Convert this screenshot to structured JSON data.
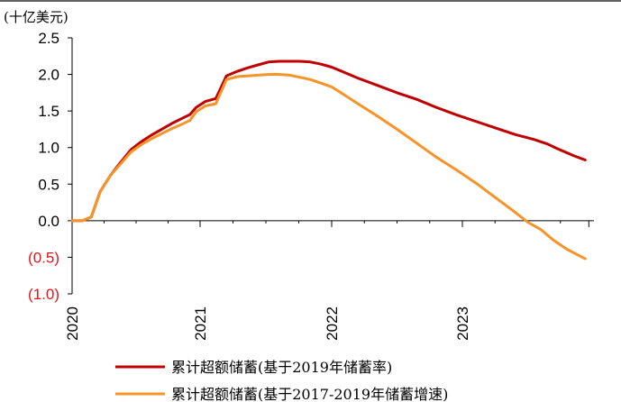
{
  "chart_data": {
    "type": "line",
    "unit_label": "(十亿美元)",
    "ylim": [
      -1.0,
      2.5
    ],
    "y_ticks": [
      {
        "value": 2.5,
        "label": "2.5",
        "negative": false
      },
      {
        "value": 2.0,
        "label": "2.0",
        "negative": false
      },
      {
        "value": 1.5,
        "label": "1.5",
        "negative": false
      },
      {
        "value": 1.0,
        "label": "1.0",
        "negative": false
      },
      {
        "value": 0.5,
        "label": "0.5",
        "negative": false
      },
      {
        "value": 0.0,
        "label": "0.0",
        "negative": false
      },
      {
        "value": -0.5,
        "label": "(0.5)",
        "negative": true
      },
      {
        "value": -1.0,
        "label": "(1.0)",
        "negative": true
      }
    ],
    "x_range": [
      2020.0,
      2023.85
    ],
    "x_ticks": [
      {
        "value": 2020,
        "label": "2020"
      },
      {
        "value": 2021,
        "label": "2021"
      },
      {
        "value": 2022,
        "label": "2022"
      },
      {
        "value": 2023,
        "label": "2023"
      }
    ],
    "grid": false,
    "legend_position": "bottom",
    "colors": {
      "negative_label": "#e8141e",
      "axis": "#000000"
    },
    "series": [
      {
        "name": "累计超额储蓄(基于2019年储蓄率)",
        "color": "#c00000",
        "points": [
          [
            2020.0,
            0.0
          ],
          [
            2020.08,
            0.0
          ],
          [
            2020.15,
            0.05
          ],
          [
            2020.22,
            0.4
          ],
          [
            2020.3,
            0.62
          ],
          [
            2020.38,
            0.8
          ],
          [
            2020.46,
            0.97
          ],
          [
            2020.54,
            1.08
          ],
          [
            2020.62,
            1.17
          ],
          [
            2020.7,
            1.25
          ],
          [
            2020.78,
            1.33
          ],
          [
            2020.86,
            1.4
          ],
          [
            2020.92,
            1.45
          ],
          [
            2020.97,
            1.55
          ],
          [
            2021.04,
            1.63
          ],
          [
            2021.12,
            1.67
          ],
          [
            2021.2,
            1.98
          ],
          [
            2021.28,
            2.04
          ],
          [
            2021.36,
            2.09
          ],
          [
            2021.44,
            2.13
          ],
          [
            2021.52,
            2.17
          ],
          [
            2021.6,
            2.18
          ],
          [
            2021.68,
            2.18
          ],
          [
            2021.76,
            2.18
          ],
          [
            2021.84,
            2.17
          ],
          [
            2021.92,
            2.14
          ],
          [
            2022.0,
            2.1
          ],
          [
            2022.08,
            2.04
          ],
          [
            2022.2,
            1.95
          ],
          [
            2022.35,
            1.85
          ],
          [
            2022.5,
            1.75
          ],
          [
            2022.65,
            1.66
          ],
          [
            2022.8,
            1.55
          ],
          [
            2022.95,
            1.45
          ],
          [
            2023.1,
            1.36
          ],
          [
            2023.25,
            1.27
          ],
          [
            2023.4,
            1.18
          ],
          [
            2023.55,
            1.11
          ],
          [
            2023.65,
            1.05
          ],
          [
            2023.72,
            0.99
          ],
          [
            2023.85,
            0.89
          ],
          [
            2023.94,
            0.83
          ]
        ]
      },
      {
        "name": "累计超额储蓄(基于2017-2019年储蓄增速)",
        "color": "#f79327",
        "points": [
          [
            2020.0,
            0.0
          ],
          [
            2020.08,
            0.0
          ],
          [
            2020.15,
            0.05
          ],
          [
            2020.22,
            0.4
          ],
          [
            2020.3,
            0.62
          ],
          [
            2020.38,
            0.78
          ],
          [
            2020.46,
            0.94
          ],
          [
            2020.54,
            1.04
          ],
          [
            2020.62,
            1.12
          ],
          [
            2020.7,
            1.19
          ],
          [
            2020.78,
            1.26
          ],
          [
            2020.86,
            1.32
          ],
          [
            2020.92,
            1.37
          ],
          [
            2020.97,
            1.49
          ],
          [
            2021.04,
            1.57
          ],
          [
            2021.12,
            1.6
          ],
          [
            2021.2,
            1.93
          ],
          [
            2021.28,
            1.97
          ],
          [
            2021.36,
            1.98
          ],
          [
            2021.44,
            1.99
          ],
          [
            2021.52,
            2.0
          ],
          [
            2021.6,
            2.0
          ],
          [
            2021.68,
            1.99
          ],
          [
            2021.76,
            1.96
          ],
          [
            2021.84,
            1.93
          ],
          [
            2021.92,
            1.88
          ],
          [
            2022.0,
            1.83
          ],
          [
            2022.08,
            1.74
          ],
          [
            2022.2,
            1.6
          ],
          [
            2022.35,
            1.43
          ],
          [
            2022.5,
            1.25
          ],
          [
            2022.65,
            1.06
          ],
          [
            2022.8,
            0.87
          ],
          [
            2022.95,
            0.7
          ],
          [
            2023.1,
            0.52
          ],
          [
            2023.25,
            0.32
          ],
          [
            2023.4,
            0.12
          ],
          [
            2023.5,
            -0.02
          ],
          [
            2023.6,
            -0.12
          ],
          [
            2023.7,
            -0.27
          ],
          [
            2023.8,
            -0.39
          ],
          [
            2023.94,
            -0.52
          ]
        ]
      }
    ]
  }
}
